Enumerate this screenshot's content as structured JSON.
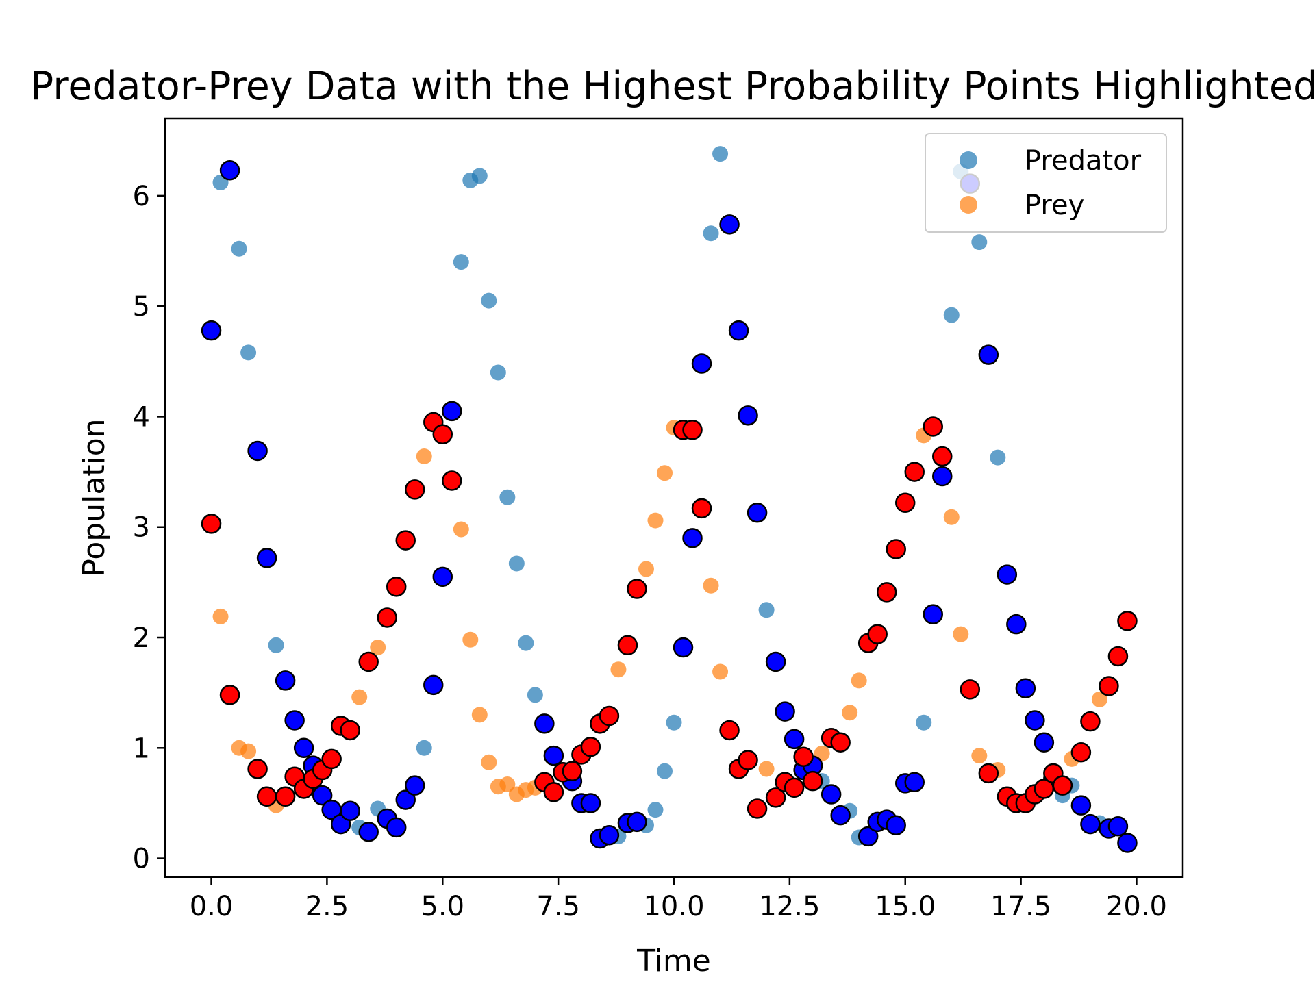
{
  "chart_data": {
    "type": "scatter",
    "title": "Predator-Prey Data with the Highest Probability Points Highlighted",
    "xlabel": "Time",
    "ylabel": "Population",
    "xlim": [
      -1.0,
      21.0
    ],
    "ylim": [
      -0.17,
      6.7
    ],
    "xticks": [
      0.0,
      2.5,
      5.0,
      7.5,
      10.0,
      12.5,
      15.0,
      17.5,
      20.0
    ],
    "xtick_labels": [
      "0.0",
      "2.5",
      "5.0",
      "7.5",
      "10.0",
      "12.5",
      "15.0",
      "17.5",
      "20.0"
    ],
    "yticks": [
      0,
      1,
      2,
      3,
      4,
      5,
      6
    ],
    "ytick_labels": [
      "0",
      "1",
      "2",
      "3",
      "4",
      "5",
      "6"
    ],
    "grid": false,
    "legend": {
      "position": "top-right",
      "entries": [
        "Predator",
        "Prey"
      ]
    },
    "colors": {
      "predator": "#1f77b4",
      "prey": "#ff7f0e",
      "highlight_predator": "#0000ff",
      "highlight_prey": "#ff0000",
      "edge": "#000000"
    },
    "series": [
      {
        "name": "Predator",
        "points": [
          [
            0.0,
            4.78
          ],
          [
            0.2,
            6.12
          ],
          [
            0.4,
            6.23
          ],
          [
            0.6,
            5.52
          ],
          [
            0.8,
            4.58
          ],
          [
            1.0,
            3.69
          ],
          [
            1.2,
            2.72
          ],
          [
            1.4,
            1.93
          ],
          [
            1.6,
            1.61
          ],
          [
            1.8,
            1.25
          ],
          [
            2.0,
            1.0
          ],
          [
            2.2,
            0.84
          ],
          [
            2.4,
            0.57
          ],
          [
            2.6,
            0.44
          ],
          [
            2.8,
            0.31
          ],
          [
            3.0,
            0.43
          ],
          [
            3.2,
            0.28
          ],
          [
            3.4,
            0.24
          ],
          [
            3.6,
            0.45
          ],
          [
            3.8,
            0.36
          ],
          [
            4.0,
            0.28
          ],
          [
            4.2,
            0.53
          ],
          [
            4.4,
            0.66
          ],
          [
            4.6,
            1.0
          ],
          [
            4.8,
            1.57
          ],
          [
            5.0,
            2.55
          ],
          [
            5.2,
            4.05
          ],
          [
            5.4,
            5.4
          ],
          [
            5.6,
            6.14
          ],
          [
            5.8,
            6.18
          ],
          [
            6.0,
            5.05
          ],
          [
            6.2,
            4.4
          ],
          [
            6.4,
            3.27
          ],
          [
            6.6,
            2.67
          ],
          [
            6.8,
            1.95
          ],
          [
            7.0,
            1.48
          ],
          [
            7.2,
            1.22
          ],
          [
            7.4,
            0.93
          ],
          [
            7.6,
            0.8
          ],
          [
            7.8,
            0.7
          ],
          [
            8.0,
            0.5
          ],
          [
            8.2,
            0.5
          ],
          [
            8.4,
            0.18
          ],
          [
            8.6,
            0.21
          ],
          [
            8.8,
            0.2
          ],
          [
            9.0,
            0.32
          ],
          [
            9.2,
            0.33
          ],
          [
            9.4,
            0.3
          ],
          [
            9.6,
            0.44
          ],
          [
            9.8,
            0.79
          ],
          [
            10.0,
            1.23
          ],
          [
            10.2,
            1.91
          ],
          [
            10.4,
            2.9
          ],
          [
            10.6,
            4.48
          ],
          [
            10.8,
            5.66
          ],
          [
            11.0,
            6.38
          ],
          [
            11.2,
            5.74
          ],
          [
            11.4,
            4.78
          ],
          [
            11.6,
            4.01
          ],
          [
            11.8,
            3.13
          ],
          [
            12.0,
            2.25
          ],
          [
            12.2,
            1.78
          ],
          [
            12.4,
            1.33
          ],
          [
            12.6,
            1.08
          ],
          [
            12.8,
            0.8
          ],
          [
            13.0,
            0.84
          ],
          [
            13.2,
            0.7
          ],
          [
            13.4,
            0.58
          ],
          [
            13.6,
            0.39
          ],
          [
            13.8,
            0.43
          ],
          [
            14.0,
            0.19
          ],
          [
            14.2,
            0.2
          ],
          [
            14.4,
            0.33
          ],
          [
            14.6,
            0.35
          ],
          [
            14.8,
            0.3
          ],
          [
            15.0,
            0.68
          ],
          [
            15.2,
            0.69
          ],
          [
            15.4,
            1.23
          ],
          [
            15.6,
            2.21
          ],
          [
            15.8,
            3.46
          ],
          [
            16.0,
            4.92
          ],
          [
            16.2,
            6.22
          ],
          [
            16.4,
            6.11
          ],
          [
            16.6,
            5.58
          ],
          [
            16.8,
            4.56
          ],
          [
            17.0,
            3.63
          ],
          [
            17.2,
            2.57
          ],
          [
            17.4,
            2.12
          ],
          [
            17.6,
            1.54
          ],
          [
            17.8,
            1.25
          ],
          [
            18.0,
            1.05
          ],
          [
            18.2,
            0.72
          ],
          [
            18.4,
            0.57
          ],
          [
            18.6,
            0.66
          ],
          [
            18.8,
            0.48
          ],
          [
            19.0,
            0.31
          ],
          [
            19.2,
            0.32
          ],
          [
            19.4,
            0.27
          ],
          [
            19.6,
            0.29
          ],
          [
            19.8,
            0.14
          ]
        ]
      },
      {
        "name": "Prey",
        "points": [
          [
            0.0,
            3.03
          ],
          [
            0.2,
            2.19
          ],
          [
            0.4,
            1.48
          ],
          [
            0.6,
            1.0
          ],
          [
            0.8,
            0.97
          ],
          [
            1.0,
            0.81
          ],
          [
            1.2,
            0.56
          ],
          [
            1.4,
            0.48
          ],
          [
            1.6,
            0.56
          ],
          [
            1.8,
            0.74
          ],
          [
            2.0,
            0.63
          ],
          [
            2.2,
            0.72
          ],
          [
            2.4,
            0.8
          ],
          [
            2.6,
            0.9
          ],
          [
            2.8,
            1.2
          ],
          [
            3.0,
            1.16
          ],
          [
            3.2,
            1.46
          ],
          [
            3.4,
            1.78
          ],
          [
            3.6,
            1.91
          ],
          [
            3.8,
            2.18
          ],
          [
            4.0,
            2.46
          ],
          [
            4.2,
            2.88
          ],
          [
            4.4,
            3.34
          ],
          [
            4.6,
            3.64
          ],
          [
            4.8,
            3.95
          ],
          [
            5.0,
            3.84
          ],
          [
            5.2,
            3.42
          ],
          [
            5.4,
            2.98
          ],
          [
            5.6,
            1.98
          ],
          [
            5.8,
            1.3
          ],
          [
            6.0,
            0.87
          ],
          [
            6.2,
            0.65
          ],
          [
            6.4,
            0.67
          ],
          [
            6.6,
            0.58
          ],
          [
            6.8,
            0.62
          ],
          [
            7.0,
            0.64
          ],
          [
            7.2,
            0.69
          ],
          [
            7.4,
            0.6
          ],
          [
            7.6,
            0.78
          ],
          [
            7.8,
            0.79
          ],
          [
            8.0,
            0.94
          ],
          [
            8.2,
            1.01
          ],
          [
            8.4,
            1.22
          ],
          [
            8.6,
            1.29
          ],
          [
            8.8,
            1.71
          ],
          [
            9.0,
            1.93
          ],
          [
            9.2,
            2.44
          ],
          [
            9.4,
            2.62
          ],
          [
            9.6,
            3.06
          ],
          [
            9.8,
            3.49
          ],
          [
            10.0,
            3.9
          ],
          [
            10.2,
            3.88
          ],
          [
            10.4,
            3.88
          ],
          [
            10.6,
            3.17
          ],
          [
            10.8,
            2.47
          ],
          [
            11.0,
            1.69
          ],
          [
            11.2,
            1.16
          ],
          [
            11.4,
            0.81
          ],
          [
            11.6,
            0.89
          ],
          [
            11.8,
            0.45
          ],
          [
            12.0,
            0.81
          ],
          [
            12.2,
            0.55
          ],
          [
            12.4,
            0.69
          ],
          [
            12.6,
            0.64
          ],
          [
            12.8,
            0.92
          ],
          [
            13.0,
            0.7
          ],
          [
            13.2,
            0.95
          ],
          [
            13.4,
            1.09
          ],
          [
            13.6,
            1.05
          ],
          [
            13.8,
            1.32
          ],
          [
            14.0,
            1.61
          ],
          [
            14.2,
            1.95
          ],
          [
            14.4,
            2.03
          ],
          [
            14.6,
            2.41
          ],
          [
            14.8,
            2.8
          ],
          [
            15.0,
            3.22
          ],
          [
            15.2,
            3.5
          ],
          [
            15.4,
            3.83
          ],
          [
            15.6,
            3.91
          ],
          [
            15.8,
            3.64
          ],
          [
            16.0,
            3.09
          ],
          [
            16.2,
            2.03
          ],
          [
            16.4,
            1.53
          ],
          [
            16.6,
            0.93
          ],
          [
            16.8,
            0.77
          ],
          [
            17.0,
            0.8
          ],
          [
            17.2,
            0.56
          ],
          [
            17.4,
            0.5
          ],
          [
            17.6,
            0.5
          ],
          [
            17.8,
            0.58
          ],
          [
            18.0,
            0.63
          ],
          [
            18.2,
            0.77
          ],
          [
            18.4,
            0.66
          ],
          [
            18.6,
            0.9
          ],
          [
            18.8,
            0.96
          ],
          [
            19.0,
            1.24
          ],
          [
            19.2,
            1.44
          ],
          [
            19.4,
            1.56
          ],
          [
            19.6,
            1.83
          ],
          [
            19.8,
            2.15
          ]
        ]
      }
    ],
    "highlighted": {
      "predator_x": [
        0.0,
        0.4,
        1.0,
        1.2,
        1.6,
        1.8,
        2.0,
        2.2,
        2.4,
        2.6,
        2.8,
        3.0,
        3.4,
        3.8,
        4.0,
        4.2,
        4.4,
        4.8,
        5.0,
        5.2,
        7.2,
        7.4,
        7.8,
        8.0,
        8.2,
        8.4,
        8.6,
        9.0,
        9.2,
        10.2,
        10.4,
        10.6,
        11.2,
        11.4,
        11.6,
        11.8,
        12.2,
        12.4,
        12.6,
        12.8,
        13.0,
        13.4,
        13.6,
        14.2,
        14.4,
        14.6,
        14.8,
        15.0,
        15.2,
        15.6,
        15.8,
        16.4,
        16.8,
        17.2,
        17.4,
        17.6,
        17.8,
        18.0,
        18.2,
        18.8,
        19.0,
        19.4,
        19.6,
        19.8
      ],
      "prey_x": [
        0.0,
        0.4,
        1.0,
        1.2,
        1.6,
        1.8,
        2.0,
        2.2,
        2.4,
        2.6,
        2.8,
        3.0,
        3.4,
        3.8,
        4.0,
        4.2,
        4.4,
        4.8,
        5.0,
        5.2,
        7.2,
        7.4,
        7.6,
        7.8,
        8.0,
        8.2,
        8.4,
        8.6,
        9.0,
        9.2,
        10.2,
        10.4,
        10.6,
        11.2,
        11.4,
        11.6,
        11.8,
        12.2,
        12.4,
        12.6,
        12.8,
        13.0,
        13.4,
        13.6,
        14.2,
        14.4,
        14.6,
        14.8,
        15.0,
        15.2,
        15.6,
        15.8,
        16.4,
        16.8,
        17.2,
        17.4,
        17.6,
        17.8,
        18.0,
        18.2,
        18.4,
        18.8,
        19.0,
        19.4,
        19.6,
        19.8
      ]
    }
  }
}
